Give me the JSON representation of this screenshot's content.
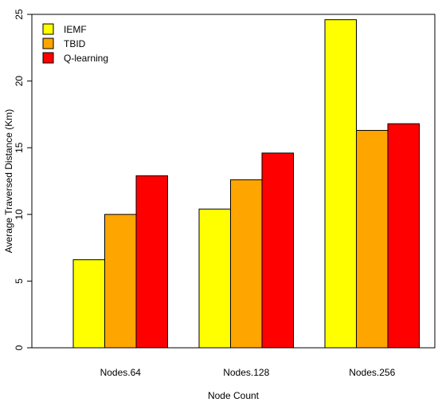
{
  "chart_data": {
    "type": "bar",
    "title": "",
    "xlabel": "Node Count",
    "ylabel": "Average Traversed Distance (Km)",
    "categories": [
      "Nodes.64",
      "Nodes.128",
      "Nodes.256"
    ],
    "series": [
      {
        "name": "IEMF",
        "color": "#ffff00",
        "values": [
          6.6,
          10.4,
          24.6
        ]
      },
      {
        "name": "TBID",
        "color": "#ffa500",
        "values": [
          10.0,
          12.6,
          16.3
        ]
      },
      {
        "name": "Q-learning",
        "color": "#ff0000",
        "values": [
          12.9,
          14.6,
          16.8
        ]
      }
    ],
    "ylim": [
      0,
      25
    ],
    "yticks": [
      "0",
      "5",
      "10",
      "15",
      "20",
      "25"
    ],
    "legend_position": "top-left",
    "grid": false
  }
}
